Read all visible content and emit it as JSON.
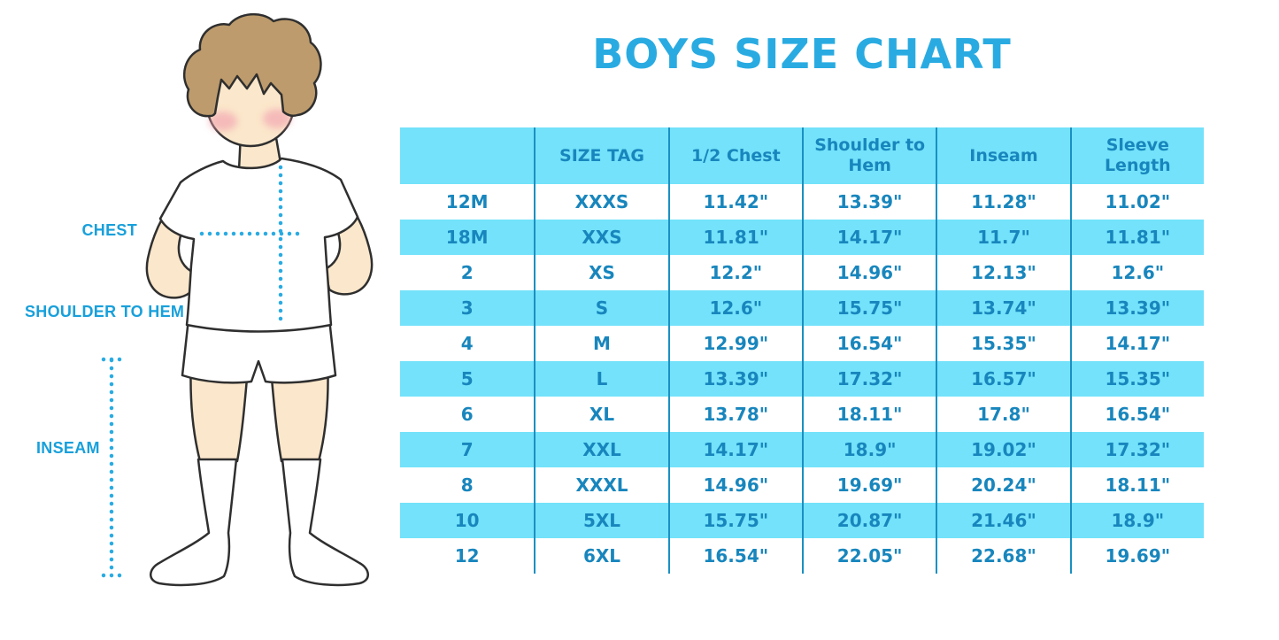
{
  "title": "BOYS SIZE CHART",
  "measurement_labels": {
    "chest": "CHEST",
    "shoulder_to_hem": "SHOULDER TO HEM",
    "inseam": "INSEAM"
  },
  "colors": {
    "title_text": "#29ABE2",
    "measurement_label_text": "#18A0DB",
    "table_stripe": "#73E2FA",
    "table_divider": "#1A90C2",
    "table_text": "#1886BD",
    "dotted_measure_line": "#29ABE2",
    "hair": "#BD9B6C",
    "skin": "#FBE7CB",
    "blush": "#F2A3B0"
  },
  "chart_data": {
    "type": "table",
    "title": "BOYS SIZE CHART",
    "columns": [
      "",
      "SIZE TAG",
      "1/2 Chest",
      "Shoulder to Hem",
      "Inseam",
      "Sleeve Length"
    ],
    "rows": [
      [
        "12M",
        "XXXS",
        "11.42\"",
        "13.39\"",
        "11.28\"",
        "11.02\""
      ],
      [
        "18M",
        "XXS",
        "11.81\"",
        "14.17\"",
        "11.7\"",
        "11.81\""
      ],
      [
        "2",
        "XS",
        "12.2\"",
        "14.96\"",
        "12.13\"",
        "12.6\""
      ],
      [
        "3",
        "S",
        "12.6\"",
        "15.75\"",
        "13.74\"",
        "13.39\""
      ],
      [
        "4",
        "M",
        "12.99\"",
        "16.54\"",
        "15.35\"",
        "14.17\""
      ],
      [
        "5",
        "L",
        "13.39\"",
        "17.32\"",
        "16.57\"",
        "15.35\""
      ],
      [
        "6",
        "XL",
        "13.78\"",
        "18.11\"",
        "17.8\"",
        "16.54\""
      ],
      [
        "7",
        "XXL",
        "14.17\"",
        "18.9\"",
        "19.02\"",
        "17.32\""
      ],
      [
        "8",
        "XXXL",
        "14.96\"",
        "19.69\"",
        "20.24\"",
        "18.11\""
      ],
      [
        "10",
        "5XL",
        "15.75\"",
        "20.87\"",
        "21.46\"",
        "18.9\""
      ],
      [
        "12",
        "6XL",
        "16.54\"",
        "22.05\"",
        "22.68\"",
        "19.69\""
      ]
    ],
    "row_striping": "header and alternate rows (2nd,4th,...) filled #73E2FA, others white",
    "units": "inches"
  }
}
